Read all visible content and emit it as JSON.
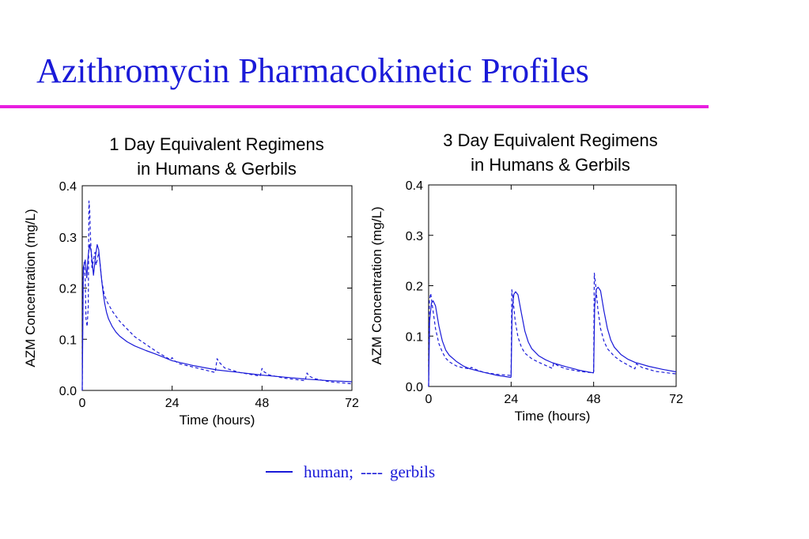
{
  "slide": {
    "title": "Azithromycin Pharmacokinetic Profiles",
    "rule_color": "#e81ee0",
    "text_color": "#1a1ad8"
  },
  "legend": {
    "human_label": "human;",
    "gerbil_marker": "----",
    "gerbil_label": "gerbils"
  },
  "chart_data": [
    {
      "type": "line",
      "title_line1": "1 Day Equivalent Regimens",
      "title_line2": "in Humans & Gerbils",
      "xlabel": "Time (hours)",
      "ylabel": "AZM Concentration (mg/L)",
      "xlim": [
        0,
        72
      ],
      "ylim": [
        0,
        0.4
      ],
      "xticks": [
        0,
        24,
        48,
        72
      ],
      "yticks": [
        0.0,
        0.1,
        0.2,
        0.3,
        0.4
      ],
      "ytick_labels": [
        "0.0",
        "0.1",
        "0.2",
        "0.3",
        "0.4"
      ],
      "grid": false,
      "series_color": "#1a1ad8",
      "series": [
        {
          "style": "solid",
          "x": [
            0,
            0.3,
            0.8,
            1.2,
            1.6,
            2.0,
            2.4,
            3.0,
            3.6,
            4.0,
            4.4,
            4.8,
            5.2,
            5.6,
            6.0,
            6.5,
            7.0,
            8.0,
            9.0,
            10.0,
            12.0,
            14.0,
            17.0,
            20.0,
            24.0,
            30.0,
            36.0,
            42.0,
            48.0,
            54.0,
            60.0,
            66.0,
            72.0
          ],
          "y": [
            0.0,
            0.24,
            0.255,
            0.22,
            0.265,
            0.285,
            0.27,
            0.225,
            0.265,
            0.285,
            0.275,
            0.245,
            0.215,
            0.19,
            0.17,
            0.152,
            0.14,
            0.125,
            0.114,
            0.106,
            0.095,
            0.087,
            0.078,
            0.07,
            0.058,
            0.048,
            0.04,
            0.035,
            0.03,
            0.026,
            0.022,
            0.019,
            0.017
          ]
        },
        {
          "style": "dashed",
          "x": [
            0,
            0.2,
            0.5,
            0.8,
            1.0,
            1.3,
            1.6,
            1.8,
            2.0,
            2.2,
            2.6,
            3.0,
            3.4,
            3.7,
            4.0,
            4.4,
            4.8,
            5.2,
            5.8,
            6.5,
            8.0,
            10.0,
            12.0,
            14.0,
            16.0,
            20.0,
            23.5,
            24.0,
            24.6,
            26.0,
            30.0,
            35.5,
            36.0,
            36.6,
            38.0,
            42.0,
            47.5,
            48.0,
            48.6,
            50.0,
            54.0,
            59.5,
            60.0,
            60.6,
            62.0,
            66.0,
            72.0
          ],
          "y": [
            0.0,
            0.21,
            0.25,
            0.215,
            0.14,
            0.125,
            0.165,
            0.37,
            0.35,
            0.3,
            0.24,
            0.255,
            0.27,
            0.245,
            0.255,
            0.27,
            0.245,
            0.215,
            0.19,
            0.175,
            0.155,
            0.135,
            0.12,
            0.105,
            0.095,
            0.075,
            0.06,
            0.064,
            0.058,
            0.052,
            0.045,
            0.035,
            0.062,
            0.055,
            0.044,
            0.035,
            0.028,
            0.043,
            0.036,
            0.03,
            0.024,
            0.019,
            0.034,
            0.028,
            0.023,
            0.017,
            0.013
          ]
        }
      ]
    },
    {
      "type": "line",
      "title_line1": "3 Day Equivalent Regimens",
      "title_line2": "in Humans & Gerbils",
      "xlabel": "Time (hours)",
      "ylabel": "AZM Concentration (mg/L)",
      "xlim": [
        0,
        72
      ],
      "ylim": [
        0,
        0.4
      ],
      "xticks": [
        0,
        24,
        48,
        72
      ],
      "yticks": [
        0.0,
        0.1,
        0.2,
        0.3,
        0.4
      ],
      "ytick_labels": [
        "0.0",
        "0.1",
        "0.2",
        "0.3",
        "0.4"
      ],
      "grid": false,
      "series_color": "#1a1ad8",
      "series": [
        {
          "style": "solid",
          "x": [
            0,
            0.3,
            0.8,
            1.3,
            2.0,
            3.0,
            4.0,
            5.0,
            6.0,
            8.0,
            10.0,
            12.0,
            16.0,
            20.0,
            23.9,
            24.0,
            24.3,
            24.8,
            25.3,
            26.0,
            27.0,
            28.0,
            29.0,
            30.0,
            32.0,
            34.0,
            36.0,
            40.0,
            44.0,
            47.9,
            48.0,
            48.3,
            48.8,
            49.3,
            50.0,
            51.0,
            52.0,
            53.0,
            54.0,
            56.0,
            58.0,
            60.0,
            64.0,
            68.0,
            72.0
          ],
          "y": [
            0.0,
            0.13,
            0.165,
            0.17,
            0.16,
            0.12,
            0.09,
            0.072,
            0.062,
            0.05,
            0.041,
            0.035,
            0.028,
            0.022,
            0.018,
            0.02,
            0.15,
            0.183,
            0.188,
            0.182,
            0.145,
            0.11,
            0.088,
            0.075,
            0.061,
            0.053,
            0.047,
            0.039,
            0.032,
            0.027,
            0.03,
            0.16,
            0.193,
            0.197,
            0.19,
            0.15,
            0.115,
            0.092,
            0.078,
            0.063,
            0.054,
            0.048,
            0.04,
            0.034,
            0.029
          ]
        },
        {
          "style": "dashed",
          "x": [
            0,
            0.2,
            0.6,
            1.2,
            2.0,
            3.0,
            4.0,
            5.0,
            6.0,
            8.0,
            10.0,
            12.0,
            12.4,
            14.0,
            16.0,
            20.0,
            23.9,
            24.0,
            24.2,
            24.6,
            25.2,
            26.0,
            27.0,
            28.0,
            30.0,
            32.0,
            36.0,
            36.4,
            38.0,
            40.0,
            44.0,
            47.9,
            48.0,
            48.2,
            48.6,
            49.2,
            50.0,
            51.0,
            52.0,
            54.0,
            56.0,
            60.0,
            60.4,
            62.0,
            66.0,
            72.0
          ],
          "y": [
            0.0,
            0.17,
            0.185,
            0.155,
            0.115,
            0.085,
            0.068,
            0.056,
            0.049,
            0.041,
            0.037,
            0.035,
            0.038,
            0.033,
            0.028,
            0.024,
            0.022,
            0.025,
            0.192,
            0.17,
            0.13,
            0.098,
            0.078,
            0.066,
            0.055,
            0.048,
            0.036,
            0.046,
            0.04,
            0.035,
            0.03,
            0.027,
            0.03,
            0.225,
            0.2,
            0.155,
            0.115,
            0.09,
            0.075,
            0.06,
            0.05,
            0.035,
            0.045,
            0.038,
            0.03,
            0.025
          ]
        }
      ]
    }
  ]
}
